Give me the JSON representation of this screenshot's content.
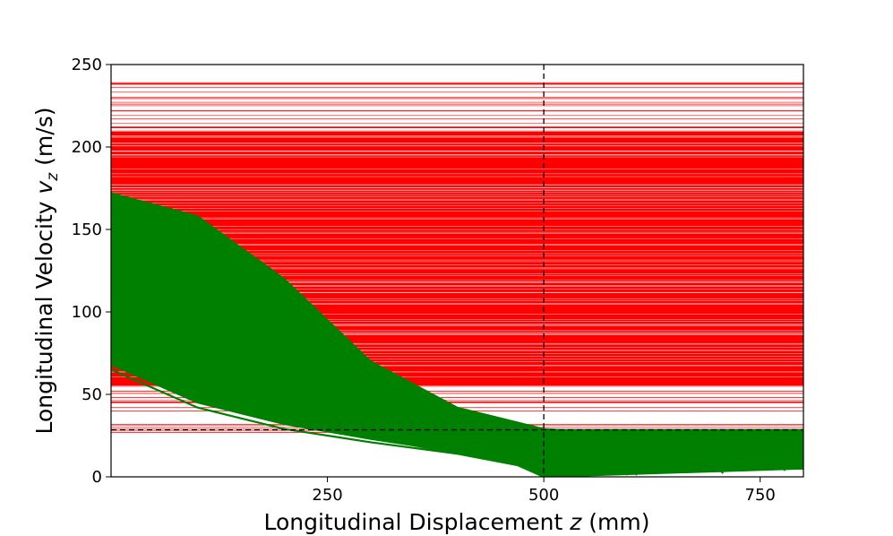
{
  "chart_data": {
    "type": "line",
    "title": "",
    "xlabel_parts": [
      "Longitudinal Displacement ",
      "z",
      " (mm)"
    ],
    "ylabel_parts": [
      "Longitudinal Velocity ",
      "v",
      "z",
      " (m/s)"
    ],
    "xlim": [
      0,
      800
    ],
    "ylim": [
      0,
      250
    ],
    "xticks": [
      250,
      500,
      750
    ],
    "yticks": [
      0,
      50,
      100,
      150,
      200,
      250
    ],
    "grid": false,
    "legend": "none",
    "reference_lines": {
      "vertical_x": 500,
      "horizontal_y": 28.5,
      "style": "dashed",
      "color": "#000000"
    },
    "series": [
      {
        "role": "red-horizontal-trajectories",
        "color": "#ff0000",
        "description_values": {
          "speed_range": [
            27,
            239
          ],
          "dense_band": [
            55,
            210
          ]
        },
        "sample_speeds": [
          239,
          236,
          230,
          226,
          222,
          217,
          212,
          208,
          205,
          202,
          198,
          195,
          192,
          190,
          188,
          185,
          182,
          180,
          176,
          173,
          170,
          60,
          58,
          55,
          52,
          48,
          45,
          42,
          40,
          27
        ]
      },
      {
        "role": "green-decelerating-trajectories",
        "color": "#008000",
        "envelope_upper": [
          [
            0,
            172
          ],
          [
            100,
            158
          ],
          [
            200,
            120
          ],
          [
            300,
            70
          ],
          [
            400,
            42
          ],
          [
            500,
            29
          ],
          [
            520,
            28.5
          ],
          [
            800,
            28.5
          ]
        ],
        "envelope_lower": [
          [
            0,
            68
          ],
          [
            100,
            45
          ],
          [
            200,
            32
          ],
          [
            300,
            23
          ],
          [
            400,
            15
          ],
          [
            480,
            6
          ],
          [
            500,
            0
          ],
          [
            800,
            5
          ]
        ],
        "sample_curves": [
          [
            [
              0,
              170
            ],
            [
              100,
              150
            ],
            [
              200,
              110
            ],
            [
              300,
              65
            ],
            [
              400,
              40
            ],
            [
              500,
              25
            ],
            [
              800,
              24
            ]
          ],
          [
            [
              0,
              150
            ],
            [
              100,
              128
            ],
            [
              200,
              90
            ],
            [
              300,
              55
            ],
            [
              400,
              33
            ],
            [
              500,
              18
            ],
            [
              800,
              18
            ]
          ],
          [
            [
              0,
              128
            ],
            [
              100,
              105
            ],
            [
              200,
              72
            ],
            [
              300,
              45
            ],
            [
              400,
              27
            ],
            [
              500,
              12
            ],
            [
              800,
              14
            ]
          ],
          [
            [
              0,
              100
            ],
            [
              100,
              78
            ],
            [
              200,
              52
            ],
            [
              300,
              33
            ],
            [
              400,
              18
            ],
            [
              500,
              4
            ],
            [
              800,
              10
            ]
          ],
          [
            [
              0,
              75
            ],
            [
              100,
              55
            ],
            [
              200,
              36
            ],
            [
              300,
              24
            ],
            [
              400,
              14
            ],
            [
              470,
              7
            ],
            [
              500,
              0
            ]
          ],
          [
            [
              0,
              65
            ],
            [
              100,
              42
            ],
            [
              200,
              29
            ],
            [
              300,
              21
            ],
            [
              400,
              14
            ],
            [
              500,
              9
            ],
            [
              800,
              5
            ]
          ]
        ]
      }
    ]
  }
}
